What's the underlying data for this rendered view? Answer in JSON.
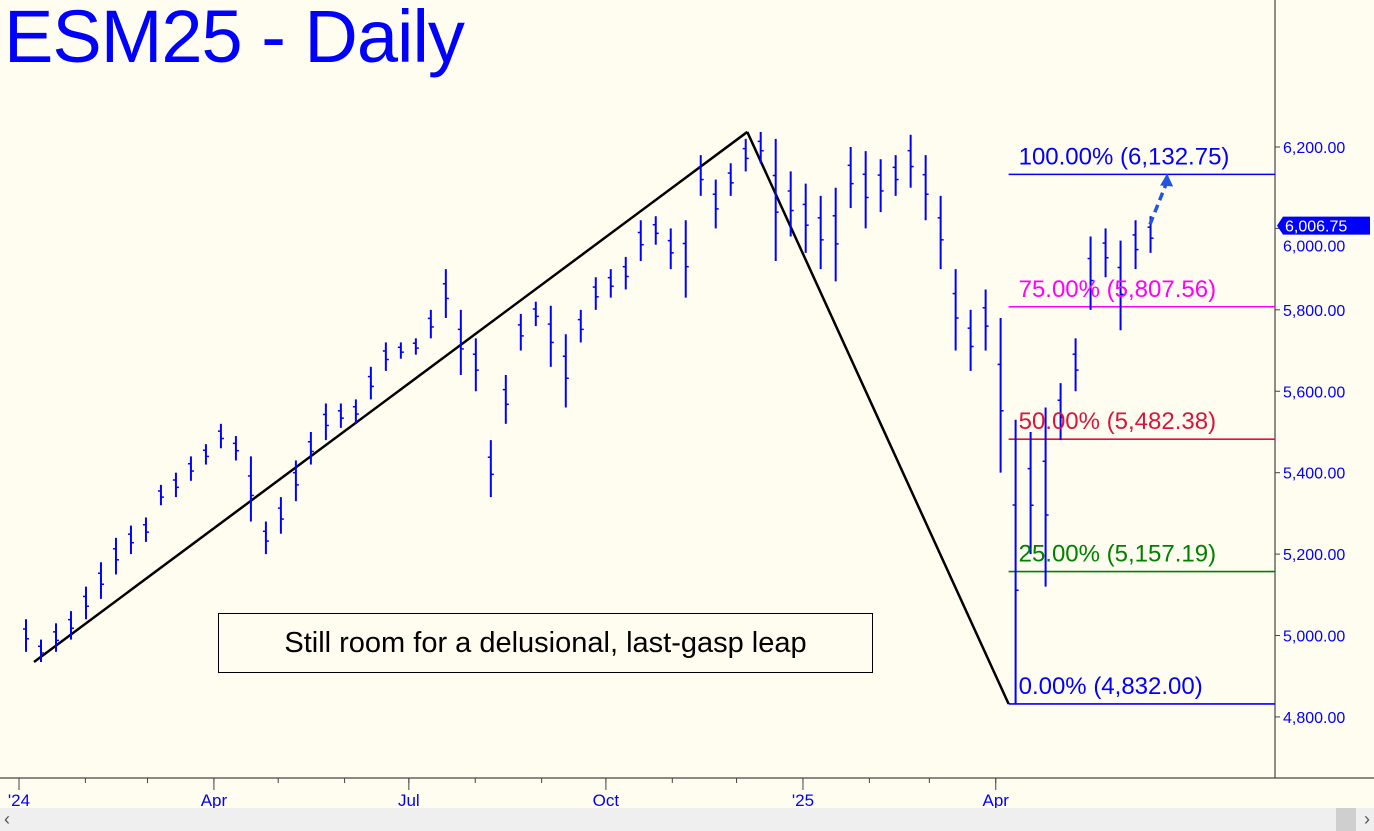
{
  "chart_data": {
    "type": "ohlc",
    "title": "ESM25 - Daily",
    "ylim": [
      4650,
      6420
    ],
    "y_ticks": [
      "6,200.00",
      "6,000.00",
      "5,800.00",
      "5,600.00",
      "5,400.00",
      "5,200.00",
      "5,000.00",
      "4,800.00"
    ],
    "y_tick_values": [
      6200,
      6000,
      5800,
      5600,
      5400,
      5200,
      5000,
      4800
    ],
    "x_ticks": [
      {
        "label": "'24",
        "date": "2024-01-01"
      },
      {
        "label": "Apr",
        "date": "2024-04-01"
      },
      {
        "label": "Jul",
        "date": "2024-07-01"
      },
      {
        "label": "Oct",
        "date": "2024-10-01"
      },
      {
        "label": "'25",
        "date": "2025-01-01"
      },
      {
        "label": "Apr",
        "date": "2025-04-01"
      }
    ],
    "bar_color": "#0000ff",
    "bars_weekly_high_low": [
      [
        "2024-01-01",
        5040,
        4960
      ],
      [
        "2024-01-08",
        4990,
        4935
      ],
      [
        "2024-01-15",
        5030,
        4960
      ],
      [
        "2024-01-22",
        5060,
        4990
      ],
      [
        "2024-01-29",
        5120,
        5040
      ],
      [
        "2024-02-05",
        5180,
        5090
      ],
      [
        "2024-02-12",
        5240,
        5150
      ],
      [
        "2024-02-19",
        5270,
        5200
      ],
      [
        "2024-02-26",
        5290,
        5230
      ],
      [
        "2024-03-04",
        5370,
        5320
      ],
      [
        "2024-03-11",
        5400,
        5340
      ],
      [
        "2024-03-18",
        5440,
        5380
      ],
      [
        "2024-03-25",
        5470,
        5420
      ],
      [
        "2024-04-01",
        5520,
        5460
      ],
      [
        "2024-04-08",
        5490,
        5430
      ],
      [
        "2024-04-15",
        5440,
        5280
      ],
      [
        "2024-04-22",
        5280,
        5200
      ],
      [
        "2024-04-29",
        5340,
        5250
      ],
      [
        "2024-05-06",
        5430,
        5330
      ],
      [
        "2024-05-13",
        5500,
        5420
      ],
      [
        "2024-05-20",
        5570,
        5480
      ],
      [
        "2024-05-27",
        5570,
        5510
      ],
      [
        "2024-06-03",
        5580,
        5520
      ],
      [
        "2024-06-10",
        5660,
        5580
      ],
      [
        "2024-06-17",
        5720,
        5650
      ],
      [
        "2024-06-24",
        5720,
        5680
      ],
      [
        "2024-07-01",
        5730,
        5690
      ],
      [
        "2024-07-08",
        5800,
        5730
      ],
      [
        "2024-07-15",
        5900,
        5780
      ],
      [
        "2024-07-22",
        5800,
        5640
      ],
      [
        "2024-07-29",
        5730,
        5600
      ],
      [
        "2024-08-05",
        5480,
        5340
      ],
      [
        "2024-08-12",
        5640,
        5520
      ],
      [
        "2024-08-19",
        5790,
        5700
      ],
      [
        "2024-08-26",
        5820,
        5760
      ],
      [
        "2024-09-02",
        5810,
        5660
      ],
      [
        "2024-09-09",
        5740,
        5560
      ],
      [
        "2024-09-16",
        5800,
        5720
      ],
      [
        "2024-09-23",
        5880,
        5800
      ],
      [
        "2024-09-30",
        5900,
        5830
      ],
      [
        "2024-10-07",
        5930,
        5850
      ],
      [
        "2024-10-14",
        6020,
        5920
      ],
      [
        "2024-10-21",
        6030,
        5960
      ],
      [
        "2024-10-28",
        6000,
        5900
      ],
      [
        "2024-11-04",
        6020,
        5830
      ],
      [
        "2024-11-11",
        6180,
        6080
      ],
      [
        "2024-11-18",
        6120,
        6000
      ],
      [
        "2024-11-25",
        6160,
        6080
      ],
      [
        "2024-12-02",
        6220,
        6140
      ],
      [
        "2024-12-09",
        6237,
        6160
      ],
      [
        "2024-12-16",
        6220,
        5920
      ],
      [
        "2024-12-23",
        6140,
        5980
      ],
      [
        "2024-12-30",
        6110,
        5940
      ],
      [
        "2025-01-06",
        6080,
        5900
      ],
      [
        "2025-01-13",
        6100,
        5870
      ],
      [
        "2025-01-20",
        6200,
        6050
      ],
      [
        "2025-01-27",
        6190,
        6000
      ],
      [
        "2025-02-03",
        6170,
        6040
      ],
      [
        "2025-02-10",
        6180,
        6080
      ],
      [
        "2025-02-17",
        6230,
        6100
      ],
      [
        "2025-02-24",
        6180,
        6020
      ],
      [
        "2025-03-03",
        6080,
        5900
      ],
      [
        "2025-03-10",
        5900,
        5700
      ],
      [
        "2025-03-17",
        5800,
        5650
      ],
      [
        "2025-03-24",
        5850,
        5700
      ],
      [
        "2025-03-31",
        5780,
        5400
      ],
      [
        "2025-04-07",
        5530,
        4832
      ],
      [
        "2025-04-14",
        5500,
        5200
      ],
      [
        "2025-04-21",
        5560,
        5120
      ],
      [
        "2025-04-28",
        5620,
        5480
      ],
      [
        "2025-05-05",
        5730,
        5600
      ],
      [
        "2025-05-12",
        5980,
        5800
      ],
      [
        "2025-05-19",
        6000,
        5880
      ],
      [
        "2025-05-26",
        5970,
        5750
      ],
      [
        "2025-06-02",
        6020,
        5900
      ],
      [
        "2025-06-09",
        6030,
        5940
      ]
    ],
    "last_price": {
      "label": "6,006.75",
      "value": 6006.75
    },
    "trendlines": [
      {
        "from": [
          "2024-01-08",
          4935
        ],
        "to": [
          "2024-12-06",
          6237
        ],
        "color": "#000000"
      },
      {
        "from": [
          "2024-12-06",
          6237
        ],
        "to": [
          "2025-04-07",
          4832
        ],
        "color": "#000000"
      }
    ],
    "fib_levels": [
      {
        "label": "100.00% (6,132.75)",
        "value": 6132.75,
        "color": "#0000ff"
      },
      {
        "label": "75.00% (5,807.56)",
        "value": 5807.56,
        "color": "#ff00ff"
      },
      {
        "label": "50.00% (5,482.38)",
        "value": 5482.38,
        "color": "#dc143c"
      },
      {
        "label": "25.00% (5,157.19)",
        "value": 5157.19,
        "color": "#008000"
      },
      {
        "label": "0.00% (4,832.00)",
        "value": 4832.0,
        "color": "#0000ff"
      }
    ],
    "projection_arrow": {
      "from": [
        "2025-06-12",
        6010
      ],
      "to": [
        "2025-06-20",
        6135
      ],
      "color": "#2255dd",
      "style": "dashed"
    },
    "annotation": "Still room for a delusional, last-gasp leap"
  }
}
